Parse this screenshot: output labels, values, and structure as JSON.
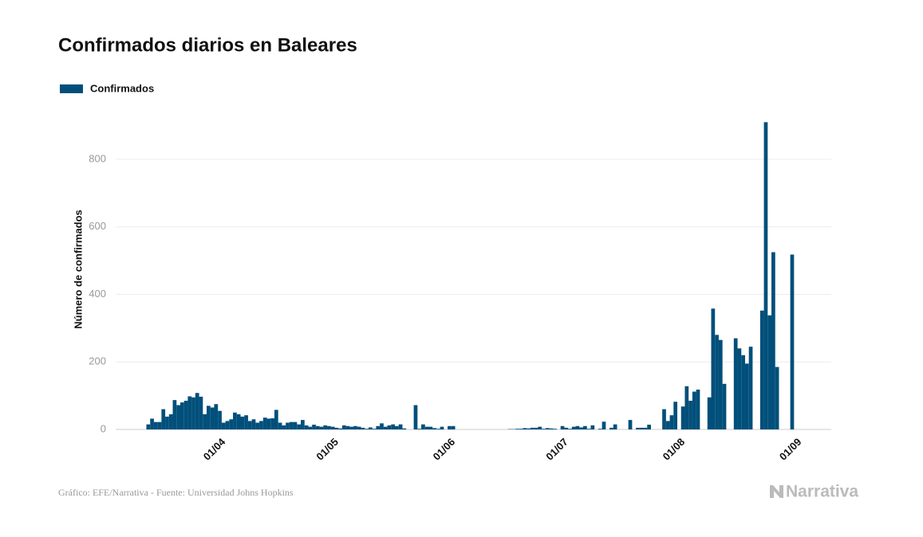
{
  "chart_data": {
    "type": "bar",
    "title": "Confirmados diarios en Baleares",
    "y_label": "Número de confirmados",
    "source": "Gráfico: EFE/Narrativa - Fuente: Universidad Johns Hopkins",
    "logo": "Narrativa",
    "color": "#004f7a",
    "grid": true,
    "ylim": [
      0,
      950
    ],
    "yticks": [
      0,
      200,
      400,
      600,
      800
    ],
    "xticks": [
      "01/04",
      "01/05",
      "01/06",
      "01/07",
      "01/08",
      "01/09"
    ],
    "categories": [
      "14/03",
      "15/03",
      "16/03",
      "17/03",
      "18/03",
      "19/03",
      "20/03",
      "21/03",
      "22/03",
      "23/03",
      "24/03",
      "25/03",
      "26/03",
      "27/03",
      "28/03",
      "29/03",
      "30/03",
      "31/03",
      "01/04",
      "02/04",
      "03/04",
      "04/04",
      "05/04",
      "06/04",
      "07/04",
      "08/04",
      "09/04",
      "10/04",
      "11/04",
      "12/04",
      "13/04",
      "14/04",
      "15/04",
      "16/04",
      "17/04",
      "18/04",
      "19/04",
      "20/04",
      "21/04",
      "22/04",
      "23/04",
      "24/04",
      "25/04",
      "26/04",
      "27/04",
      "28/04",
      "29/04",
      "30/04",
      "01/05",
      "02/05",
      "03/05",
      "04/05",
      "05/05",
      "06/05",
      "07/05",
      "08/05",
      "09/05",
      "10/05",
      "11/05",
      "12/05",
      "13/05",
      "14/05",
      "15/05",
      "16/05",
      "17/05",
      "18/05",
      "19/05",
      "20/05",
      "21/05",
      "22/05",
      "23/05",
      "24/05",
      "25/05",
      "26/05",
      "27/05",
      "28/05",
      "29/05",
      "30/05",
      "31/05",
      "01/06",
      "02/06",
      "03/06",
      "04/06",
      "05/06",
      "06/06",
      "07/06",
      "08/06",
      "09/06",
      "10/06",
      "11/06",
      "12/06",
      "13/06",
      "14/06",
      "15/06",
      "16/06",
      "17/06",
      "18/06",
      "19/06",
      "20/06",
      "21/06",
      "22/06",
      "23/06",
      "24/06",
      "25/06",
      "26/06",
      "27/06",
      "28/06",
      "29/06",
      "30/06",
      "01/07",
      "02/07",
      "03/07",
      "04/07",
      "05/07",
      "06/07",
      "07/07",
      "08/07",
      "09/07",
      "10/07",
      "11/07",
      "12/07",
      "13/07",
      "14/07",
      "15/07",
      "16/07",
      "17/07",
      "18/07",
      "19/07",
      "20/07",
      "21/07",
      "22/07",
      "23/07",
      "24/07",
      "25/07",
      "26/07",
      "27/07",
      "28/07",
      "29/07",
      "30/07",
      "31/07",
      "01/08",
      "02/08",
      "03/08",
      "04/08",
      "05/08",
      "06/08",
      "07/08",
      "08/08",
      "09/08",
      "10/08",
      "11/08",
      "12/08",
      "13/08",
      "14/08",
      "15/08",
      "16/08",
      "17/08",
      "18/08",
      "19/08",
      "20/08",
      "21/08",
      "22/08",
      "23/08",
      "24/08",
      "25/08",
      "26/08",
      "27/08",
      "28/08",
      "29/08",
      "30/08",
      "31/08",
      "01/09"
    ],
    "series": [
      {
        "name": "Confirmados",
        "color": "#004f7a",
        "values": [
          15,
          32,
          22,
          22,
          60,
          38,
          45,
          87,
          72,
          80,
          85,
          98,
          95,
          108,
          97,
          45,
          70,
          65,
          75,
          55,
          20,
          25,
          30,
          50,
          45,
          38,
          42,
          25,
          30,
          20,
          25,
          35,
          32,
          33,
          58,
          20,
          12,
          20,
          22,
          22,
          15,
          28,
          12,
          8,
          14,
          10,
          8,
          12,
          10,
          8,
          5,
          3,
          12,
          10,
          8,
          10,
          8,
          5,
          2,
          6,
          2,
          10,
          18,
          8,
          12,
          15,
          10,
          15,
          3,
          0,
          0,
          72,
          2,
          15,
          8,
          8,
          4,
          2,
          8,
          0,
          10,
          10,
          0,
          0,
          0,
          0,
          0,
          0,
          0,
          0,
          0,
          0,
          0,
          0,
          0,
          0,
          1,
          1,
          2,
          2,
          4,
          3,
          5,
          5,
          8,
          2,
          4,
          3,
          2,
          0,
          10,
          5,
          2,
          8,
          10,
          6,
          10,
          2,
          12,
          0,
          2,
          23,
          0,
          5,
          15,
          0,
          0,
          0,
          28,
          0,
          5,
          5,
          5,
          14,
          0,
          0,
          0,
          60,
          25,
          42,
          82,
          0,
          68,
          128,
          85,
          112,
          118,
          0,
          0,
          95,
          358,
          280,
          265,
          135,
          0,
          0,
          270,
          240,
          220,
          195,
          245,
          0,
          0,
          352,
          910,
          338,
          525,
          185,
          0,
          0,
          0,
          518
        ]
      }
    ]
  }
}
